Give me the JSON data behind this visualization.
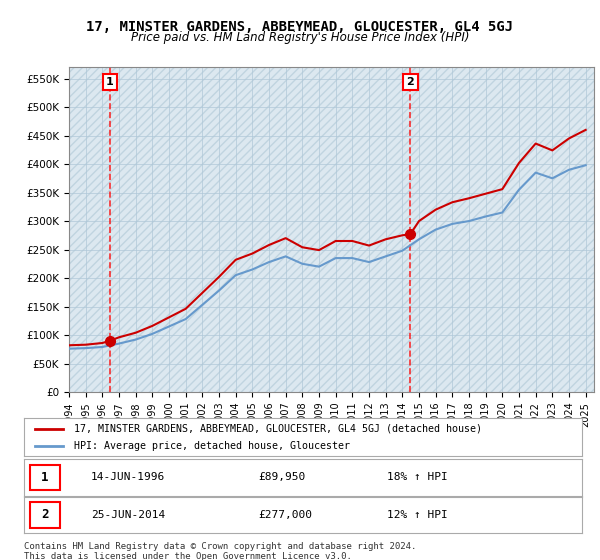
{
  "title": "17, MINSTER GARDENS, ABBEYMEAD, GLOUCESTER, GL4 5GJ",
  "subtitle": "Price paid vs. HM Land Registry's House Price Index (HPI)",
  "sale1_date": "14-JUN-1996",
  "sale1_price": 89950,
  "sale1_hpi": "18% ↑ HPI",
  "sale2_date": "25-JUN-2014",
  "sale2_price": 277000,
  "sale2_hpi": "12% ↑ HPI",
  "legend_line1": "17, MINSTER GARDENS, ABBEYMEAD, GLOUCESTER, GL4 5GJ (detached house)",
  "legend_line2": "HPI: Average price, detached house, Gloucester",
  "footer": "Contains HM Land Registry data © Crown copyright and database right 2024.\nThis data is licensed under the Open Government Licence v3.0.",
  "ylim": [
    0,
    570000
  ],
  "yticks": [
    0,
    50000,
    100000,
    150000,
    200000,
    250000,
    300000,
    350000,
    400000,
    450000,
    500000,
    550000
  ],
  "ylabel_format": "£{0}K",
  "bg_color": "#e8f4f8",
  "hatch_color": "#c8dce8",
  "grid_color": "#b0c8d8",
  "red_line_color": "#cc0000",
  "blue_line_color": "#6699cc",
  "sale1_x": 1996.46,
  "sale2_x": 2014.48,
  "xmin": 1994,
  "xmax": 2025.5
}
